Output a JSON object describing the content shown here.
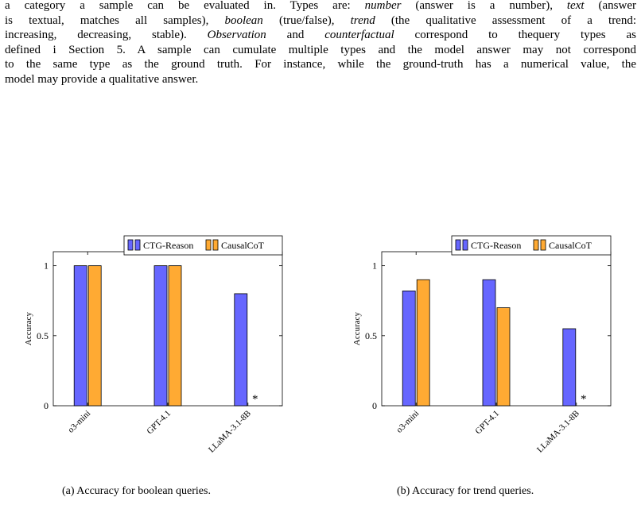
{
  "paragraph": {
    "lines": [
      [
        {
          "text": "a category a sample can be evaluated in. Types are: ",
          "style": "normal"
        },
        {
          "text": "number",
          "style": "italic"
        },
        {
          "text": " (answer is a number), ",
          "style": "normal"
        },
        {
          "text": "text",
          "style": "italic"
        },
        {
          "text": " (answer",
          "style": "normal"
        }
      ],
      [
        {
          "text": "is textual, matches all samples), ",
          "style": "normal"
        },
        {
          "text": "boolean",
          "style": "italic"
        },
        {
          "text": " (true/false), ",
          "style": "normal"
        },
        {
          "text": "trend",
          "style": "italic"
        },
        {
          "text": " (the qualitative assessment of a trend:",
          "style": "normal"
        }
      ],
      [
        {
          "text": "increasing, decreasing, stable). ",
          "style": "normal"
        },
        {
          "text": "Observation",
          "style": "italic"
        },
        {
          "text": " and ",
          "style": "normal"
        },
        {
          "text": "counterfactual",
          "style": "italic"
        },
        {
          "text": " correspond to thequery types as",
          "style": "normal"
        }
      ],
      [
        {
          "text": "defined i Section 5. A sample can cumulate multiple types and the model answer may not correspond",
          "style": "normal"
        }
      ],
      [
        {
          "text": "to the same type as the ground truth. For instance, while the ground-truth has a numerical value, the",
          "style": "normal"
        }
      ],
      [
        {
          "text": "model may provide a qualitative answer.",
          "style": "normal"
        }
      ]
    ]
  },
  "colors": {
    "ctg_reason": "#6666ff",
    "causal_cot": "#ffaa33",
    "axis": "#000000"
  },
  "chart_data": [
    {
      "type": "bar",
      "categories": [
        "o3-mini",
        "GPT-4.1",
        "LLaMA-3.1-8B"
      ],
      "series": [
        {
          "name": "CTG-Reason",
          "values": [
            1.0,
            1.0,
            0.8
          ]
        },
        {
          "name": "CausalCoT",
          "values": [
            1.0,
            1.0,
            null
          ]
        }
      ],
      "annotations": [
        {
          "category": "LLaMA-3.1-8B",
          "series": "CausalCoT",
          "text": "*"
        }
      ],
      "ylabel": "Accuracy",
      "ylim": [
        0,
        1.1
      ],
      "yticks": [
        0,
        0.5,
        1
      ],
      "ytick_labels": [
        "0",
        "0.5",
        "1"
      ],
      "legend_position": "top-right",
      "caption": "(a) Accuracy for boolean queries."
    },
    {
      "type": "bar",
      "categories": [
        "o3-mini",
        "GPT-4.1",
        "LLaMA-3.1-8B"
      ],
      "series": [
        {
          "name": "CTG-Reason",
          "values": [
            0.82,
            0.9,
            0.55
          ]
        },
        {
          "name": "CausalCoT",
          "values": [
            0.9,
            0.7,
            null
          ]
        }
      ],
      "annotations": [
        {
          "category": "LLaMA-3.1-8B",
          "series": "CausalCoT",
          "text": "*"
        }
      ],
      "ylabel": "Accuracy",
      "ylim": [
        0,
        1.1
      ],
      "yticks": [
        0,
        0.5,
        1
      ],
      "ytick_labels": [
        "0",
        "0.5",
        "1"
      ],
      "legend_position": "top-right",
      "caption": "(b) Accuracy for trend queries."
    }
  ]
}
